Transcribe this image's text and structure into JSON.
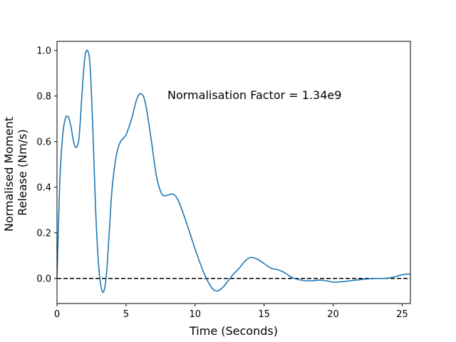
{
  "chart_data": {
    "type": "line",
    "title": "",
    "xlabel": "Time (Seconds)",
    "ylabel_lines": [
      "Normalised Moment",
      "Release (Nm/s)"
    ],
    "xlim": [
      0,
      25.6
    ],
    "ylim": [
      -0.11,
      1.04
    ],
    "x_ticks": [
      0,
      5,
      10,
      15,
      20,
      25
    ],
    "y_ticks": [
      0.0,
      0.2,
      0.4,
      0.6,
      0.8,
      1.0
    ],
    "x_tick_labels": [
      "0",
      "5",
      "10",
      "15",
      "20",
      "25"
    ],
    "y_tick_labels": [
      "0.0",
      "0.2",
      "0.4",
      "0.6",
      "0.8",
      "1.0"
    ],
    "grid": false,
    "annotation": "Normalisation Factor = 1.34e9",
    "reference_line": {
      "y": 0.0,
      "style": "dashed",
      "color": "#000000"
    },
    "series": [
      {
        "color": "#1f77b4",
        "x": [
          0,
          0.2,
          0.4,
          0.6,
          0.8,
          1.0,
          1.2,
          1.4,
          1.6,
          1.8,
          2.0,
          2.2,
          2.4,
          2.6,
          2.8,
          3.0,
          3.2,
          3.4,
          3.6,
          3.8,
          4.0,
          4.3,
          4.6,
          5.0,
          5.4,
          5.8,
          6.1,
          6.4,
          6.8,
          7.2,
          7.6,
          8.0,
          8.4,
          8.8,
          9.4,
          10.0,
          10.6,
          11.2,
          11.6,
          12.0,
          12.4,
          12.8,
          13.2,
          13.6,
          14.0,
          14.5,
          15.0,
          15.5,
          16.0,
          16.5,
          17.0,
          17.5,
          18.0,
          18.5,
          19.0,
          19.5,
          20.0,
          20.5,
          21.0,
          21.5,
          22.0,
          22.5,
          23.0,
          23.5,
          24.0,
          24.5,
          25.0,
          25.6
        ],
        "y": [
          0.0,
          0.42,
          0.62,
          0.7,
          0.71,
          0.67,
          0.6,
          0.575,
          0.62,
          0.8,
          0.96,
          1.0,
          0.93,
          0.65,
          0.3,
          0.07,
          -0.04,
          -0.055,
          0.03,
          0.22,
          0.4,
          0.54,
          0.6,
          0.63,
          0.7,
          0.79,
          0.81,
          0.77,
          0.62,
          0.45,
          0.37,
          0.365,
          0.37,
          0.34,
          0.24,
          0.13,
          0.03,
          -0.04,
          -0.055,
          -0.04,
          -0.01,
          0.02,
          0.045,
          0.075,
          0.092,
          0.085,
          0.065,
          0.045,
          0.038,
          0.025,
          0.005,
          -0.005,
          -0.01,
          -0.01,
          -0.007,
          -0.01,
          -0.016,
          -0.015,
          -0.012,
          -0.008,
          -0.005,
          -0.002,
          0.0,
          0.0,
          0.002,
          0.008,
          0.016,
          0.02
        ]
      }
    ]
  }
}
